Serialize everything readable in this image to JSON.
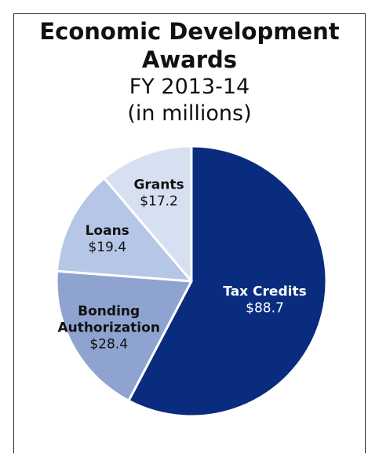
{
  "chart_data": {
    "type": "pie",
    "title": "Economic Development Awards",
    "subtitle_lines": [
      "FY 2013-14",
      "(in millions)"
    ],
    "slices": [
      {
        "label": "Tax Credits",
        "value": 88.7,
        "display": "$88.7",
        "color": "#0a2c7e",
        "text_color": "#ffffff"
      },
      {
        "label": "Bonding Authorization",
        "value": 28.4,
        "display": "$28.4",
        "color": "#8ea3cf",
        "text_color": "#111111"
      },
      {
        "label": "Loans",
        "value": 19.4,
        "display": "$19.4",
        "color": "#b6c6e6",
        "text_color": "#111111"
      },
      {
        "label": "Grants",
        "value": 17.2,
        "display": "$17.2",
        "color": "#d6e0f0",
        "text_color": "#111111"
      }
    ],
    "legend": "none",
    "start": "12 o'clock, clockwise"
  }
}
